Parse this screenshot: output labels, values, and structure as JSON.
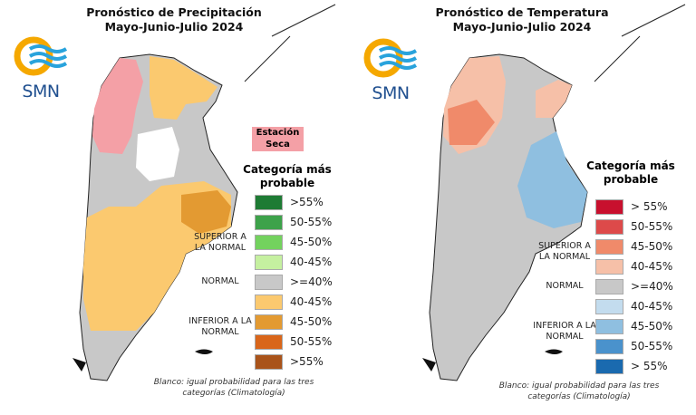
{
  "precipitation": {
    "title_line1": "Pronóstico de Precipitación",
    "title_line2": "Mayo-Junio-Julio 2024",
    "logo_text": "SMN",
    "dry_season_label": "Estación Seca",
    "dry_season_color": "#f4a0a6",
    "legend_title": "Categoría más probable",
    "category_superior": "SUPERIOR A LA NORMAL",
    "category_normal": "NORMAL",
    "category_inferior": "INFERIOR A LA NORMAL",
    "legend": [
      {
        "label": ">55%",
        "color": "#1e7b34"
      },
      {
        "label": "50-55%",
        "color": "#3da24a"
      },
      {
        "label": "45-50%",
        "color": "#73d25e"
      },
      {
        "label": "40-45%",
        "color": "#c5f0a0"
      },
      {
        "label": ">=40%",
        "color": "#c8c8c8"
      },
      {
        "label": "40-45%",
        "color": "#fbc96f"
      },
      {
        "label": "45-50%",
        "color": "#e39a32"
      },
      {
        "label": "50-55%",
        "color": "#d9661a"
      },
      {
        "label": ">55%",
        "color": "#a9531a"
      }
    ],
    "footnote": "Blanco: igual probabilidad para las tres categorías (Climatología)"
  },
  "temperature": {
    "title_line1": "Pronóstico de Temperatura",
    "title_line2": "Mayo-Junio-Julio 2024",
    "logo_text": "SMN",
    "legend_title": "Categoría más probable",
    "category_superior": "SUPERIOR A LA NORMAL",
    "category_normal": "NORMAL",
    "category_inferior": "INFERIOR A LA NORMAL",
    "legend": [
      {
        "label": "> 55%",
        "color": "#c8102e"
      },
      {
        "label": "50-55%",
        "color": "#dd4a4a"
      },
      {
        "label": "45-50%",
        "color": "#f08a6a"
      },
      {
        "label": "40-45%",
        "color": "#f6c0a8"
      },
      {
        "label": ">=40%",
        "color": "#c8c8c8"
      },
      {
        "label": "40-45%",
        "color": "#c3dcee"
      },
      {
        "label": "45-50%",
        "color": "#8fbfe0"
      },
      {
        "label": "50-55%",
        "color": "#4a92cc"
      },
      {
        "label": "> 55%",
        "color": "#1a6aaf"
      }
    ],
    "footnote": "Blanco: igual probabilidad para las tres categorías (Climatología)"
  }
}
